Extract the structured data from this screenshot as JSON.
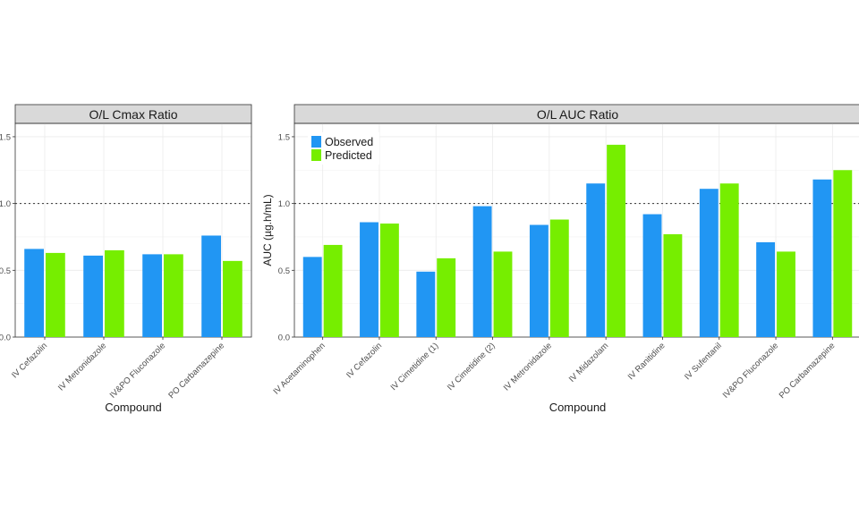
{
  "charts": [
    {
      "panel": "cmax",
      "chart_data": {
        "type": "bar",
        "title": "O/L Cmax Ratio",
        "xlabel": "Compound",
        "ylabel": "",
        "categories": [
          "IV Cefazolin",
          "IV Metronidazole",
          "IV&PO Fluconazole",
          "PO Carbamazepine"
        ],
        "series": [
          {
            "name": "Observed",
            "values": [
              0.66,
              0.61,
              0.62,
              0.76
            ]
          },
          {
            "name": "Predicted",
            "values": [
              0.63,
              0.65,
              0.62,
              0.57
            ]
          }
        ],
        "ylim": [
          0,
          1.6
        ],
        "yticks": [
          "0.0",
          "0.5",
          "1.0",
          "1.5"
        ],
        "reference_line": 1.0,
        "grid": true,
        "legend": "none"
      }
    },
    {
      "panel": "auc",
      "chart_data": {
        "type": "bar",
        "title": "O/L AUC Ratio",
        "xlabel": "Compound",
        "ylabel": "AUC (µg.h/mL)",
        "categories": [
          "IV Acetaminophen",
          "IV Cefazolin",
          "IV Cimetidine (1)",
          "IV Cimetidine (2)",
          "IV Metronidazole",
          "IV Midazolam",
          "IV Ranitidine",
          "IV Sufentanil",
          "IV&PO Fluconazole",
          "PO Carbamazepine"
        ],
        "series": [
          {
            "name": "Observed",
            "values": [
              0.6,
              0.86,
              0.49,
              0.98,
              0.84,
              1.15,
              0.92,
              1.11,
              0.71,
              1.18
            ]
          },
          {
            "name": "Predicted",
            "values": [
              0.69,
              0.85,
              0.59,
              0.64,
              0.88,
              1.44,
              0.77,
              1.15,
              0.64,
              1.25
            ]
          }
        ],
        "ylim": [
          0,
          1.6
        ],
        "yticks": [
          "0.0",
          "0.5",
          "1.0",
          "1.5"
        ],
        "reference_line": 1.0,
        "grid": true,
        "legend": "top-left"
      }
    }
  ],
  "colors": {
    "observed": "#2196f3",
    "predicted": "#76ee00",
    "strip_fill": "#d9d9d9",
    "grid": "#ebebeb",
    "axis": "#333333",
    "tick_text": "#4d4d4d"
  }
}
